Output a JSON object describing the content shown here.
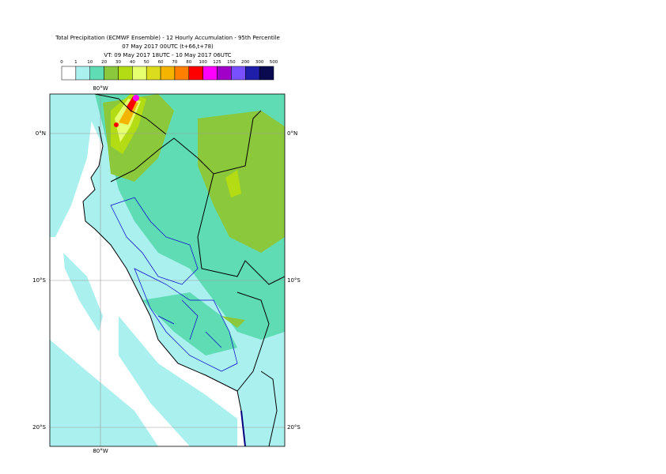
{
  "header": {
    "title": "Total Precipitation (ECMWF Ensemble) - 12 Hourly Accumulation - 95th Percentile",
    "run": "07 May 2017 00UTC (t+66,t+78)",
    "valid": "VT: 09 May 2017 18UTC - 10 May 2017 06UTC"
  },
  "legend": {
    "thresholds": [
      0,
      1,
      10,
      20,
      30,
      40,
      50,
      60,
      70,
      80,
      100,
      125,
      150,
      200,
      300,
      500
    ],
    "colors": [
      "#ffffff",
      "#aaf0ee",
      "#5fdcb4",
      "#8cc83c",
      "#b4dc14",
      "#e6ff6e",
      "#dcdc1e",
      "#f5b400",
      "#ff8000",
      "#ff0000",
      "#ff00ff",
      "#a000c8",
      "#7850ff",
      "#1e1eaa",
      "#0a0a50"
    ]
  },
  "map": {
    "lon_label_top": "80°W",
    "lon_label_bottom": "80°W",
    "lat_labels_left": [
      "0°N",
      "10°S",
      "20°S"
    ],
    "lat_labels_right": [
      "0°N",
      "10°S",
      "20°S"
    ]
  }
}
